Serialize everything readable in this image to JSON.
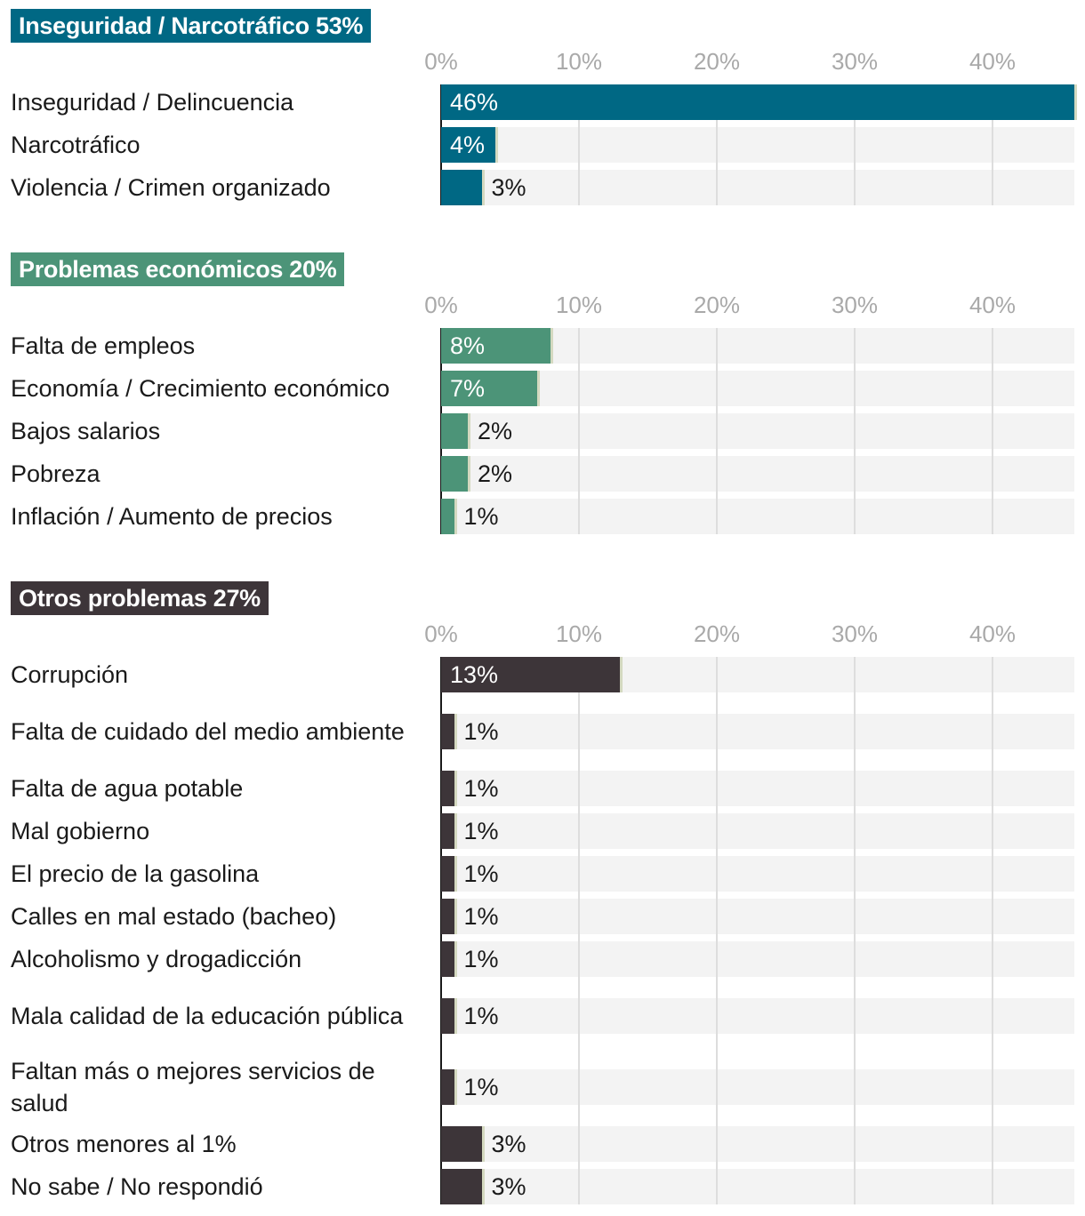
{
  "chart_data": {
    "type": "bar",
    "orientation": "horizontal",
    "xlim": [
      0,
      46
    ],
    "ticks": [
      "0%",
      "10%",
      "20%",
      "30%",
      "40%"
    ],
    "tick_values": [
      0,
      10,
      20,
      30,
      40
    ],
    "groups": [
      {
        "title": "Inseguridad / Narcotráfico 53%",
        "color": "#006884",
        "categories": [
          "Inseguridad / Delincuencia",
          "Narcotráfico",
          "Violencia / Crimen organizado"
        ],
        "values": [
          46,
          4,
          3
        ],
        "value_labels": [
          "46%",
          "4%",
          "3%"
        ]
      },
      {
        "title": "Problemas económicos 20%",
        "color": "#4c9478",
        "categories": [
          "Falta de empleos",
          "Economía / Crecimiento económico",
          "Bajos salarios",
          "Pobreza",
          "Inflación / Aumento de precios"
        ],
        "values": [
          8,
          7,
          2,
          2,
          1
        ],
        "value_labels": [
          "8%",
          "7%",
          "2%",
          "2%",
          "1%"
        ]
      },
      {
        "title": "Otros problemas 27%",
        "color": "#3d3539",
        "categories": [
          "Corrupción",
          "Falta de cuidado del medio ambiente",
          "Falta de agua potable",
          "Mal gobierno",
          "El precio de la gasolina",
          "Calles en mal estado (bacheo)",
          "Alcoholismo y drogadicción",
          "Mala calidad de la educación pública",
          "Faltan más o mejores servicios de salud",
          "Otros menores al 1%",
          "No sabe / No respondió"
        ],
        "values": [
          13,
          1,
          1,
          1,
          1,
          1,
          1,
          1,
          1,
          3,
          3
        ],
        "value_labels": [
          "13%",
          "1%",
          "1%",
          "1%",
          "1%",
          "1%",
          "1%",
          "1%",
          "1%",
          "3%",
          "3%"
        ]
      }
    ]
  }
}
